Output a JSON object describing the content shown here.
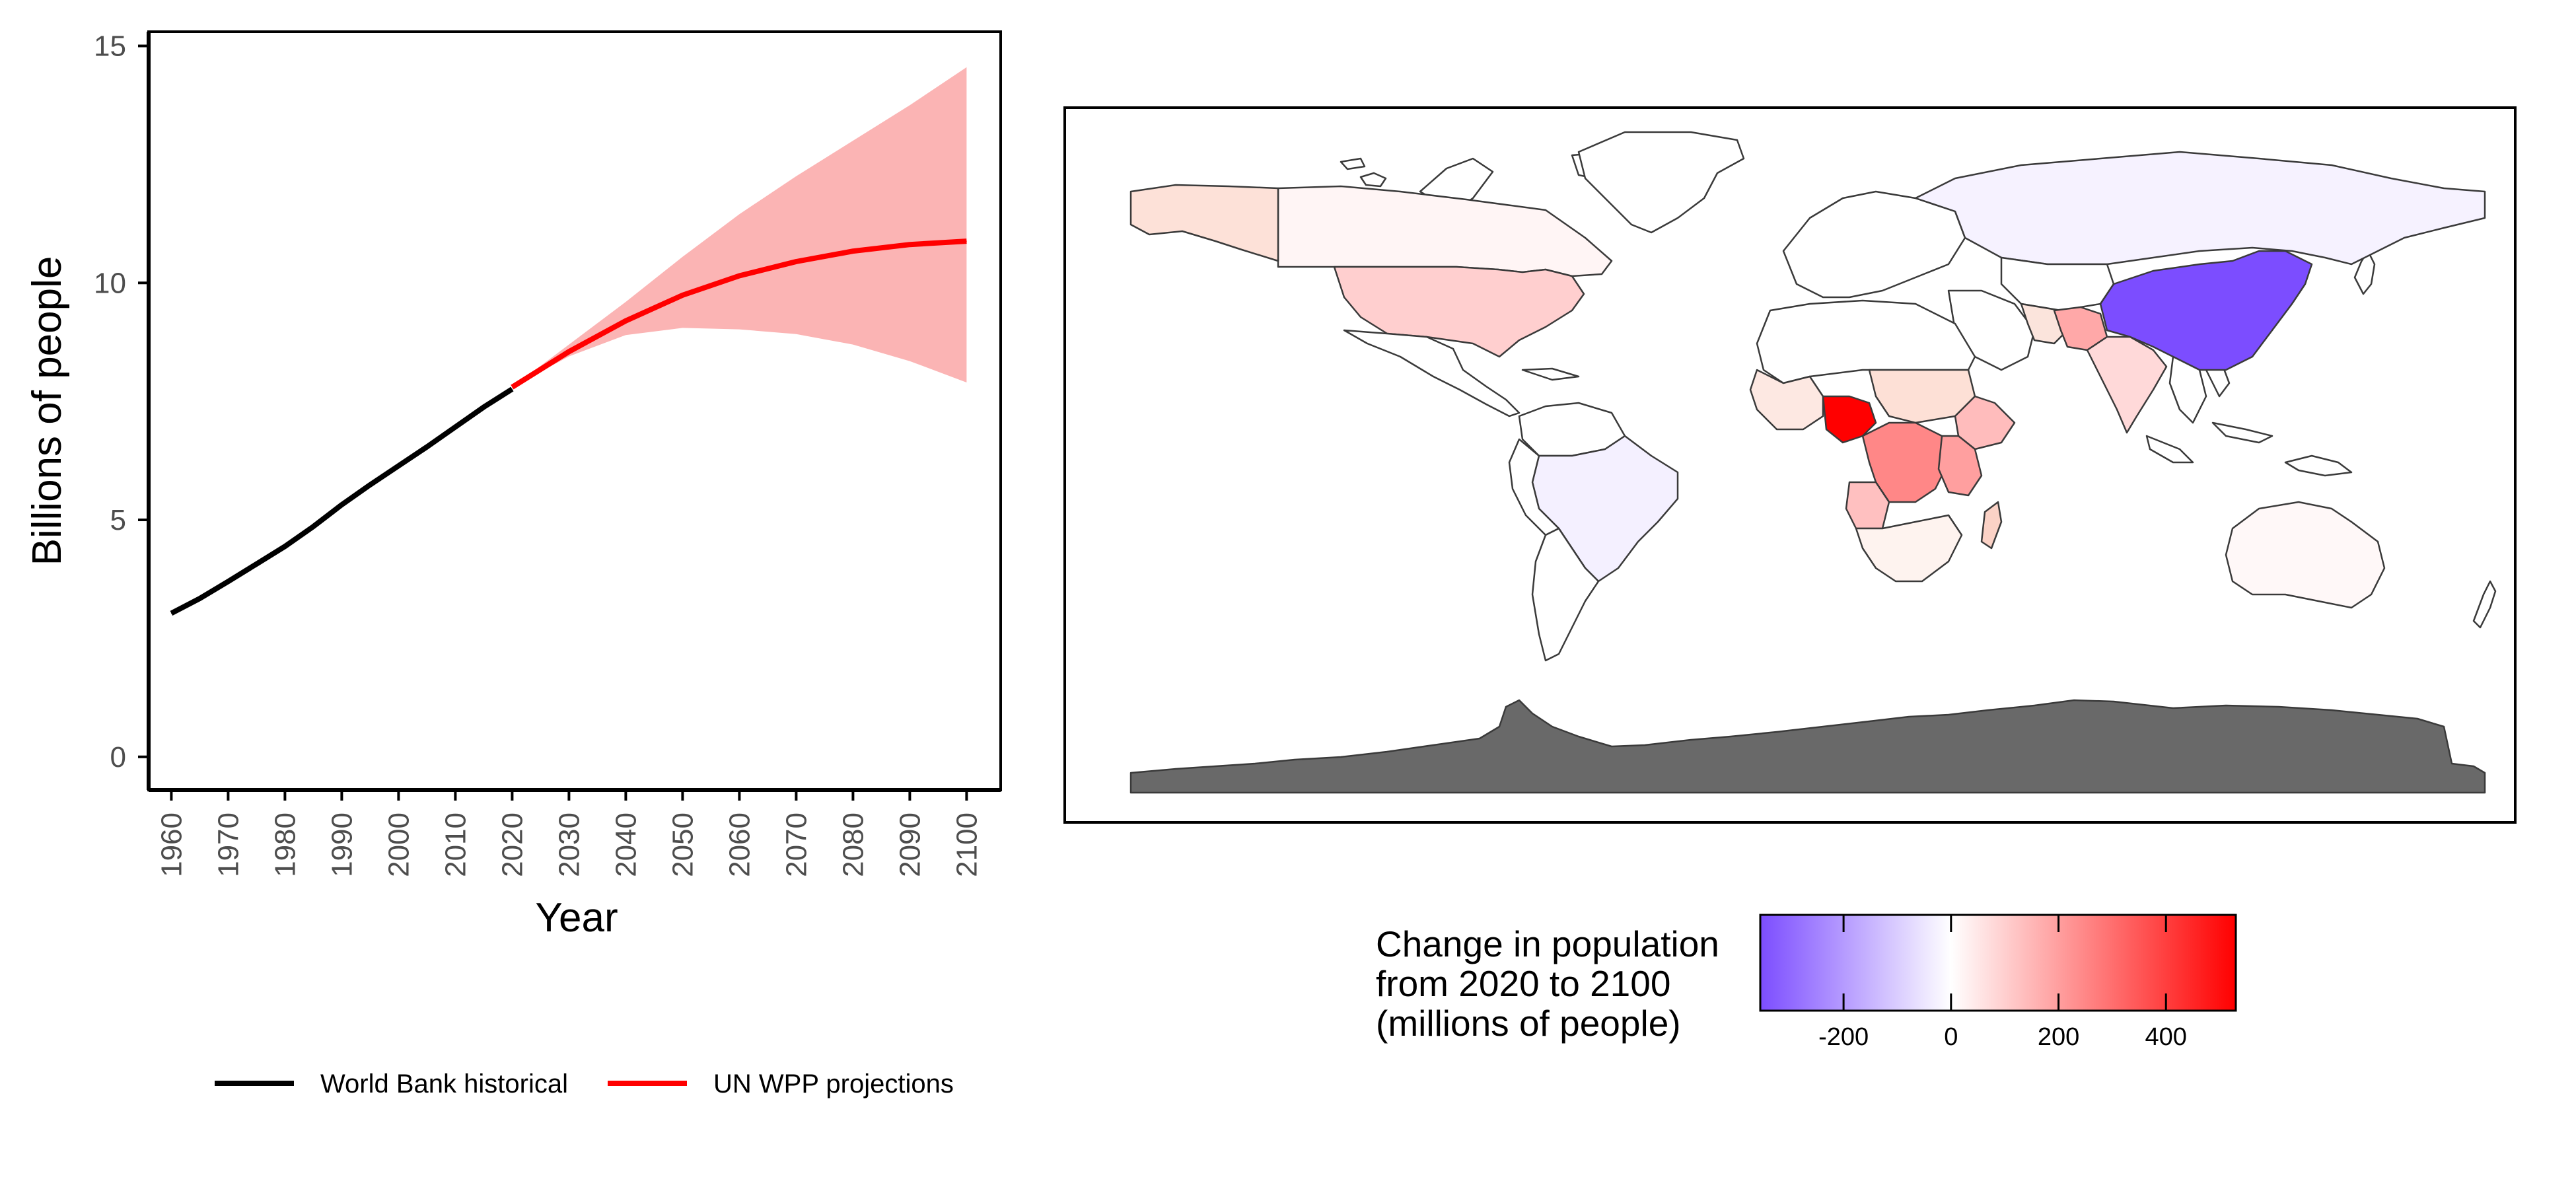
{
  "chart_data": [
    {
      "type": "line",
      "xlabel": "Year",
      "ylabel": "Billions of people",
      "xlim": [
        1956,
        2106
      ],
      "ylim": [
        -0.7,
        15.3
      ],
      "x_ticks": [
        1960,
        1970,
        1980,
        1990,
        2000,
        2010,
        2020,
        2030,
        2040,
        2050,
        2060,
        2070,
        2080,
        2090,
        2100
      ],
      "y_ticks": [
        0,
        5,
        10,
        15
      ],
      "legend_position": "bottom",
      "series": [
        {
          "name": "World Bank historical",
          "color": "#000000",
          "x": [
            1960,
            1965,
            1970,
            1975,
            1980,
            1985,
            1990,
            1995,
            2000,
            2005,
            2010,
            2015,
            2020
          ],
          "y": [
            3.03,
            3.34,
            3.7,
            4.07,
            4.44,
            4.86,
            5.32,
            5.74,
            6.14,
            6.54,
            6.96,
            7.38,
            7.76
          ]
        },
        {
          "name": "UN WPP projections",
          "color": "#ff0000",
          "x": [
            2020,
            2030,
            2040,
            2050,
            2060,
            2070,
            2080,
            2090,
            2100
          ],
          "y": [
            7.8,
            8.55,
            9.2,
            9.74,
            10.15,
            10.45,
            10.67,
            10.81,
            10.88
          ]
        }
      ],
      "ribbon": {
        "color": "#fbb4b4",
        "x": [
          2020,
          2030,
          2040,
          2050,
          2060,
          2070,
          2080,
          2090,
          2100
        ],
        "lower": [
          7.8,
          8.45,
          8.9,
          9.05,
          9.02,
          8.92,
          8.7,
          8.35,
          7.9
        ],
        "upper": [
          7.8,
          8.7,
          9.6,
          10.55,
          11.45,
          12.25,
          13.0,
          13.75,
          14.55
        ]
      }
    },
    {
      "type": "heatmap",
      "subtype": "choropleth-map",
      "legend_title": [
        "Change in population",
        "from 2020 to 2100",
        "(millions of people)"
      ],
      "scale": {
        "min": -355,
        "mid": 0,
        "max": 530,
        "low_color": "#7c4dff",
        "mid_color": "#ffffff",
        "high_color": "#ff0000"
      },
      "scale_ticks": [
        -200,
        0,
        200,
        400
      ],
      "no_data_color": "#696969",
      "regions": [
        {
          "name": "China",
          "value": -355
        },
        {
          "name": "Nigeria",
          "value": 530
        },
        {
          "name": "DR Congo",
          "value": 250
        },
        {
          "name": "Tanzania",
          "value": 200
        },
        {
          "name": "Pakistan",
          "value": 180
        },
        {
          "name": "Ethiopia",
          "value": 140
        },
        {
          "name": "United States",
          "value": 100
        },
        {
          "name": "India",
          "value": 80
        },
        {
          "name": "Angola",
          "value": 130
        },
        {
          "name": "Russia",
          "value": -25
        },
        {
          "name": "Brazil",
          "value": -30
        },
        {
          "name": "Canada",
          "value": 20
        },
        {
          "name": "Australia",
          "value": 15
        }
      ]
    }
  ]
}
